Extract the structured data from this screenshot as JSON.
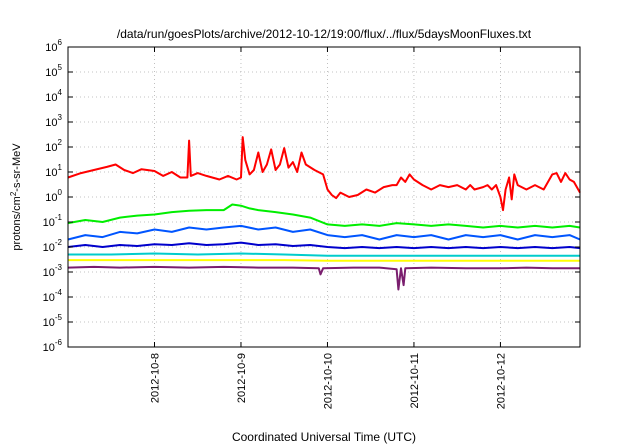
{
  "chart_data": {
    "type": "line",
    "title": "/data/run/goesPlots/archive/2012-10-12/19:00/flux/../flux/5daysMoonFluxes.txt",
    "xlabel": "Coordinated Universal Time (UTC)",
    "ylabel": {
      "base": "protons/cm",
      "sup": "2",
      "rest": "-s-sr-MeV"
    },
    "yscale": "log",
    "xlim": [
      0,
      5.92
    ],
    "ylim": [
      1e-06,
      1000000.0
    ],
    "grid": true,
    "legend": "none",
    "x_ticks": [
      {
        "label": "2012-10-8",
        "x": 1.0
      },
      {
        "label": "2012-10-9",
        "x": 2.0
      },
      {
        "label": "2012-10-10",
        "x": 3.0
      },
      {
        "label": "2012-10-11",
        "x": 4.0
      },
      {
        "label": "2012-10-12",
        "x": 5.0
      }
    ],
    "y_ticks": [
      {
        "base": "10",
        "exp": "-6",
        "v": 1e-06
      },
      {
        "base": "10",
        "exp": "-5",
        "v": 1e-05
      },
      {
        "base": "10",
        "exp": "-4",
        "v": 0.0001
      },
      {
        "base": "10",
        "exp": "-3",
        "v": 0.001
      },
      {
        "base": "10",
        "exp": "-2",
        "v": 0.01
      },
      {
        "base": "10",
        "exp": "-1",
        "v": 0.1
      },
      {
        "base": "10",
        "exp": "0",
        "v": 1
      },
      {
        "base": "10",
        "exp": "1",
        "v": 10
      },
      {
        "base": "10",
        "exp": "2",
        "v": 100
      },
      {
        "base": "10",
        "exp": "3",
        "v": 1000
      },
      {
        "base": "10",
        "exp": "4",
        "v": 10000
      },
      {
        "base": "10",
        "exp": "5",
        "v": 100000
      },
      {
        "base": "10",
        "exp": "6",
        "v": 1000000
      }
    ],
    "series": [
      {
        "color": "#ff0000",
        "points": [
          [
            0,
            6
          ],
          [
            0.15,
            9
          ],
          [
            0.3,
            12
          ],
          [
            0.45,
            16
          ],
          [
            0.55,
            20
          ],
          [
            0.65,
            12
          ],
          [
            0.75,
            9
          ],
          [
            0.85,
            13
          ],
          [
            1.0,
            11
          ],
          [
            1.1,
            7
          ],
          [
            1.2,
            10
          ],
          [
            1.3,
            6
          ],
          [
            1.38,
            6
          ],
          [
            1.4,
            180
          ],
          [
            1.42,
            7
          ],
          [
            1.5,
            9
          ],
          [
            1.6,
            7
          ],
          [
            1.75,
            5
          ],
          [
            1.85,
            7
          ],
          [
            1.95,
            5
          ],
          [
            2.0,
            6
          ],
          [
            2.02,
            250
          ],
          [
            2.05,
            30
          ],
          [
            2.1,
            8
          ],
          [
            2.15,
            12
          ],
          [
            2.2,
            60
          ],
          [
            2.25,
            10
          ],
          [
            2.3,
            20
          ],
          [
            2.35,
            80
          ],
          [
            2.4,
            12
          ],
          [
            2.45,
            20
          ],
          [
            2.5,
            90
          ],
          [
            2.55,
            15
          ],
          [
            2.6,
            25
          ],
          [
            2.65,
            10
          ],
          [
            2.7,
            60
          ],
          [
            2.75,
            20
          ],
          [
            2.85,
            12
          ],
          [
            2.95,
            8
          ],
          [
            3.0,
            2
          ],
          [
            3.05,
            1.2
          ],
          [
            3.1,
            0.9
          ],
          [
            3.15,
            1.5
          ],
          [
            3.25,
            1
          ],
          [
            3.35,
            1.2
          ],
          [
            3.45,
            2
          ],
          [
            3.55,
            1.5
          ],
          [
            3.65,
            2.5
          ],
          [
            3.75,
            3
          ],
          [
            3.8,
            3
          ],
          [
            3.85,
            6
          ],
          [
            3.9,
            4
          ],
          [
            3.95,
            8
          ],
          [
            4.0,
            5
          ],
          [
            4.1,
            3
          ],
          [
            4.2,
            2
          ],
          [
            4.3,
            3
          ],
          [
            4.4,
            2.5
          ],
          [
            4.5,
            3
          ],
          [
            4.6,
            2
          ],
          [
            4.65,
            3
          ],
          [
            4.7,
            2
          ],
          [
            4.8,
            2.5
          ],
          [
            4.85,
            3
          ],
          [
            4.9,
            2
          ],
          [
            4.95,
            3
          ],
          [
            5.0,
            1
          ],
          [
            5.03,
            0.3
          ],
          [
            5.06,
            2
          ],
          [
            5.1,
            6
          ],
          [
            5.13,
            0.8
          ],
          [
            5.16,
            8
          ],
          [
            5.2,
            3
          ],
          [
            5.3,
            2
          ],
          [
            5.4,
            3
          ],
          [
            5.5,
            2
          ],
          [
            5.6,
            8
          ],
          [
            5.65,
            9
          ],
          [
            5.7,
            4
          ],
          [
            5.75,
            9
          ],
          [
            5.8,
            5
          ],
          [
            5.85,
            4
          ],
          [
            5.92,
            1.5
          ]
        ]
      },
      {
        "color": "#00ee00",
        "points": [
          [
            0,
            0.09
          ],
          [
            0.2,
            0.12
          ],
          [
            0.4,
            0.1
          ],
          [
            0.6,
            0.15
          ],
          [
            0.8,
            0.18
          ],
          [
            1.0,
            0.2
          ],
          [
            1.2,
            0.25
          ],
          [
            1.4,
            0.28
          ],
          [
            1.6,
            0.3
          ],
          [
            1.8,
            0.3
          ],
          [
            1.9,
            0.5
          ],
          [
            2.0,
            0.45
          ],
          [
            2.1,
            0.35
          ],
          [
            2.2,
            0.3
          ],
          [
            2.4,
            0.25
          ],
          [
            2.6,
            0.2
          ],
          [
            2.8,
            0.15
          ],
          [
            3.0,
            0.08
          ],
          [
            3.2,
            0.07
          ],
          [
            3.4,
            0.08
          ],
          [
            3.6,
            0.07
          ],
          [
            3.8,
            0.09
          ],
          [
            4.0,
            0.08
          ],
          [
            4.2,
            0.07
          ],
          [
            4.4,
            0.08
          ],
          [
            4.6,
            0.07
          ],
          [
            4.8,
            0.06
          ],
          [
            5.0,
            0.07
          ],
          [
            5.2,
            0.06
          ],
          [
            5.4,
            0.07
          ],
          [
            5.6,
            0.06
          ],
          [
            5.8,
            0.07
          ],
          [
            5.92,
            0.06
          ]
        ]
      },
      {
        "color": "#0055ff",
        "points": [
          [
            0,
            0.02
          ],
          [
            0.2,
            0.03
          ],
          [
            0.4,
            0.025
          ],
          [
            0.6,
            0.04
          ],
          [
            0.8,
            0.035
          ],
          [
            1.0,
            0.05
          ],
          [
            1.2,
            0.04
          ],
          [
            1.4,
            0.06
          ],
          [
            1.6,
            0.05
          ],
          [
            1.8,
            0.06
          ],
          [
            2.0,
            0.07
          ],
          [
            2.2,
            0.05
          ],
          [
            2.4,
            0.06
          ],
          [
            2.6,
            0.04
          ],
          [
            2.8,
            0.05
          ],
          [
            3.0,
            0.03
          ],
          [
            3.2,
            0.025
          ],
          [
            3.4,
            0.03
          ],
          [
            3.6,
            0.02
          ],
          [
            3.8,
            0.03
          ],
          [
            4.0,
            0.025
          ],
          [
            4.2,
            0.03
          ],
          [
            4.4,
            0.02
          ],
          [
            4.6,
            0.03
          ],
          [
            4.8,
            0.025
          ],
          [
            5.0,
            0.03
          ],
          [
            5.2,
            0.02
          ],
          [
            5.4,
            0.03
          ],
          [
            5.6,
            0.025
          ],
          [
            5.8,
            0.03
          ],
          [
            5.92,
            0.02
          ]
        ]
      },
      {
        "color": "#0000cc",
        "points": [
          [
            0,
            0.01
          ],
          [
            0.2,
            0.012
          ],
          [
            0.4,
            0.01
          ],
          [
            0.6,
            0.012
          ],
          [
            0.8,
            0.011
          ],
          [
            1.0,
            0.013
          ],
          [
            1.2,
            0.012
          ],
          [
            1.4,
            0.014
          ],
          [
            1.6,
            0.012
          ],
          [
            1.8,
            0.013
          ],
          [
            2.0,
            0.015
          ],
          [
            2.2,
            0.012
          ],
          [
            2.4,
            0.013
          ],
          [
            2.6,
            0.011
          ],
          [
            2.8,
            0.012
          ],
          [
            3.0,
            0.01
          ],
          [
            3.2,
            0.009
          ],
          [
            3.4,
            0.01
          ],
          [
            3.6,
            0.009
          ],
          [
            3.8,
            0.01
          ],
          [
            4.0,
            0.009
          ],
          [
            4.2,
            0.01
          ],
          [
            4.4,
            0.009
          ],
          [
            4.6,
            0.01
          ],
          [
            4.8,
            0.009
          ],
          [
            5.0,
            0.01
          ],
          [
            5.2,
            0.009
          ],
          [
            5.4,
            0.01
          ],
          [
            5.6,
            0.009
          ],
          [
            5.8,
            0.01
          ],
          [
            5.92,
            0.009
          ]
        ]
      },
      {
        "color": "#00cccc",
        "points": [
          [
            0,
            0.005
          ],
          [
            0.5,
            0.005
          ],
          [
            1.0,
            0.0055
          ],
          [
            1.5,
            0.005
          ],
          [
            2.0,
            0.0055
          ],
          [
            2.5,
            0.005
          ],
          [
            3.0,
            0.0045
          ],
          [
            3.5,
            0.0045
          ],
          [
            4.0,
            0.0045
          ],
          [
            4.5,
            0.0045
          ],
          [
            5.0,
            0.0045
          ],
          [
            5.5,
            0.0045
          ],
          [
            5.92,
            0.0045
          ]
        ]
      },
      {
        "color": "#ffff00",
        "points": [
          [
            0,
            0.003
          ],
          [
            0.5,
            0.003
          ],
          [
            1.0,
            0.003
          ],
          [
            1.5,
            0.003
          ],
          [
            2.0,
            0.003
          ],
          [
            2.5,
            0.003
          ],
          [
            3.0,
            0.0028
          ],
          [
            3.5,
            0.0028
          ],
          [
            4.0,
            0.0028
          ],
          [
            4.5,
            0.0028
          ],
          [
            5.0,
            0.0028
          ],
          [
            5.5,
            0.0028
          ],
          [
            5.92,
            0.0028
          ]
        ]
      },
      {
        "color": "#7a1e6e",
        "points": [
          [
            0,
            0.0015
          ],
          [
            0.3,
            0.0016
          ],
          [
            0.6,
            0.0015
          ],
          [
            1.0,
            0.0016
          ],
          [
            1.4,
            0.0015
          ],
          [
            1.8,
            0.0016
          ],
          [
            2.2,
            0.0015
          ],
          [
            2.6,
            0.0015
          ],
          [
            2.9,
            0.0014
          ],
          [
            2.92,
            0.0008
          ],
          [
            2.95,
            0.0014
          ],
          [
            3.3,
            0.0015
          ],
          [
            3.6,
            0.0015
          ],
          [
            3.8,
            0.0013
          ],
          [
            3.82,
            0.0002
          ],
          [
            3.85,
            0.0014
          ],
          [
            3.88,
            0.0003
          ],
          [
            3.9,
            0.0014
          ],
          [
            4.2,
            0.0015
          ],
          [
            4.6,
            0.0014
          ],
          [
            5.0,
            0.0014
          ],
          [
            5.3,
            0.0015
          ],
          [
            5.6,
            0.0014
          ],
          [
            5.92,
            0.0014
          ]
        ]
      }
    ]
  }
}
